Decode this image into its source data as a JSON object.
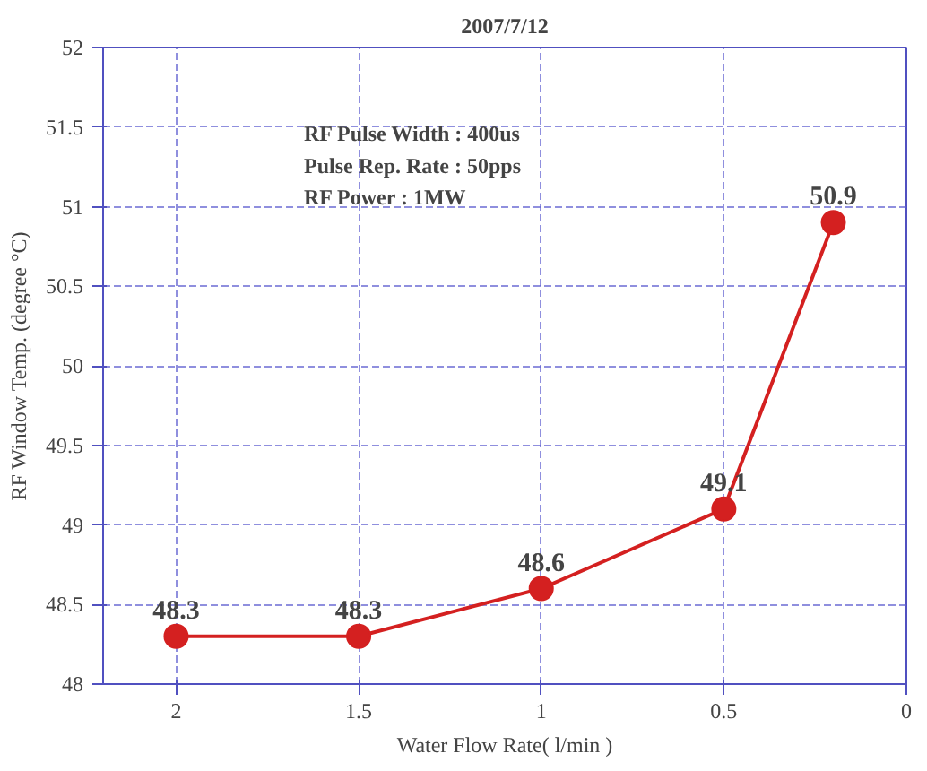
{
  "chart_data": {
    "type": "line",
    "title": "2007/7/12",
    "xlabel": "Water Flow Rate( l/min )",
    "ylabel": "RF Window Temp. (degree °C)",
    "x": [
      2,
      1.5,
      1,
      0.5,
      0.2
    ],
    "series": [
      {
        "color": "#d42020",
        "values": [
          48.3,
          48.3,
          48.6,
          49.1,
          50.9
        ]
      }
    ],
    "xlim": [
      2.2,
      0
    ],
    "xticks": [
      2,
      1.5,
      1,
      0.5,
      0
    ],
    "ylim": [
      48,
      52
    ],
    "yticks": [
      48,
      48.5,
      49,
      49.5,
      50,
      50.5,
      51,
      51.5,
      52
    ],
    "annotations": [
      "RF Pulse Width : 400us",
      "Pulse Rep. Rate : 50pps",
      "RF Power         : 1MW"
    ],
    "data_labels": true,
    "grid": true,
    "marker": "circle",
    "line_style": "solid"
  }
}
